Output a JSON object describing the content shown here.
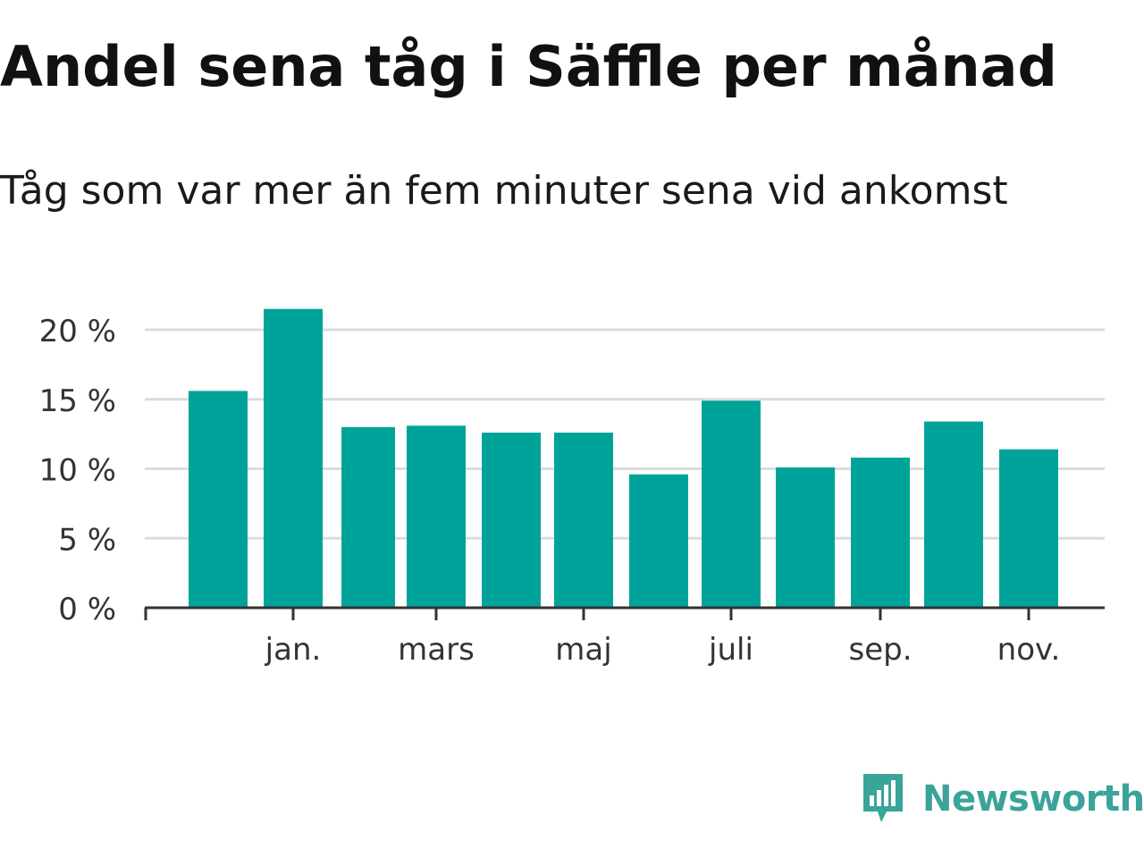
{
  "chart_data": {
    "type": "bar",
    "title": "Andel sena tåg i Säffle per månad",
    "subtitle": "Tåg som var mer än fem minuter sena vid ankomst",
    "xlabel": "",
    "ylabel": "",
    "ylim": [
      0,
      20
    ],
    "y_ticks": [
      0,
      5,
      10,
      15,
      20
    ],
    "y_tick_labels": [
      "0 %",
      "5 %",
      "10 %",
      "15 %",
      "20 %"
    ],
    "x_tick_labels": [
      "jan.",
      "mars",
      "maj",
      "juli",
      "sep.",
      "nov."
    ],
    "x_tick_positions": [
      1,
      3,
      5,
      7,
      9,
      11
    ],
    "values": [
      15.6,
      21.5,
      13.0,
      13.1,
      12.6,
      12.6,
      9.6,
      14.9,
      10.1,
      10.8,
      13.4,
      11.4
    ],
    "color": "#00a39a",
    "grid": true
  },
  "logo": {
    "text": "Newsworthy",
    "color": "#3aa39a",
    "icon": "newsworthy-chart-bubble-icon"
  }
}
